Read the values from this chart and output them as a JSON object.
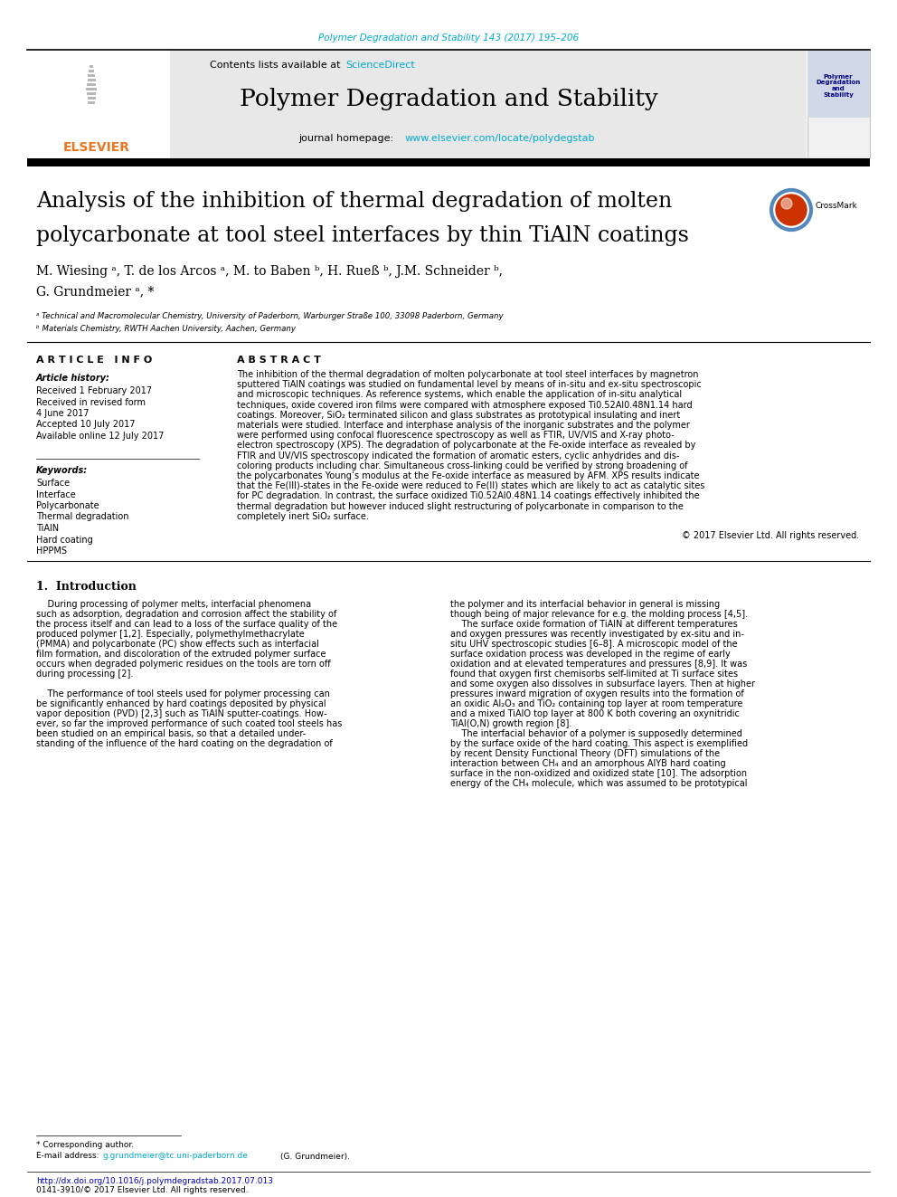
{
  "page_bg": "#ffffff",
  "top_journal_ref": "Polymer Degradation and Stability 143 (2017) 195–206",
  "top_journal_ref_color": "#00AACC",
  "header_bg": "#E8E8E8",
  "journal_title": "Polymer Degradation and Stability",
  "journal_homepage_url": "www.elsevier.com/locate/polydegstab",
  "article_title_line1": "Analysis of the inhibition of thermal degradation of molten",
  "article_title_line2": "polycarbonate at tool steel interfaces by thin TiAlN coatings",
  "authors": "M. Wiesing ᵃ, T. de los Arcos ᵃ, M. to Baben ᵇ, H. Rueß ᵇ, J.M. Schneider ᵇ,",
  "authors_line2": "G. Grundmeier ᵃ, *",
  "affil_a": "ᵃ Technical and Macromolecular Chemistry, University of Paderborn, Warburger Straße 100, 33098 Paderborn, Germany",
  "affil_b": "ᵇ Materials Chemistry, RWTH Aachen University, Aachen, Germany",
  "article_info_header": "A R T I C L E   I N F O",
  "article_history_header": "Article history:",
  "article_history": [
    "Received 1 February 2017",
    "Received in revised form",
    "4 June 2017",
    "Accepted 10 July 2017",
    "Available online 12 July 2017"
  ],
  "keywords_header": "Keywords:",
  "keywords": [
    "Surface",
    "Interface",
    "Polycarbonate",
    "Thermal degradation",
    "TiAlN",
    "Hard coating",
    "HPPMS"
  ],
  "abstract_header": "A B S T R A C T",
  "abstract_lines": [
    "The inhibition of the thermal degradation of molten polycarbonate at tool steel interfaces by magnetron",
    "sputtered TiAlN coatings was studied on fundamental level by means of in-situ and ex-situ spectroscopic",
    "and microscopic techniques. As reference systems, which enable the application of in-situ analytical",
    "techniques, oxide covered iron films were compared with atmosphere exposed Ti0.52Al0.48N1.14 hard",
    "coatings. Moreover, SiO₂ terminated silicon and glass substrates as prototypical insulating and inert",
    "materials were studied. Interface and interphase analysis of the inorganic substrates and the polymer",
    "were performed using confocal fluorescence spectroscopy as well as FTIR, UV/VIS and X-ray photo-",
    "electron spectroscopy (XPS). The degradation of polycarbonate at the Fe-oxide interface as revealed by",
    "FTIR and UV/VIS spectroscopy indicated the formation of aromatic esters, cyclic anhydrides and dis-",
    "coloring products including char. Simultaneous cross-linking could be verified by strong broadening of",
    "the polycarbonates Young’s modulus at the Fe-oxide interface as measured by AFM. XPS results indicate",
    "that the Fe(III)-states in the Fe-oxide were reduced to Fe(II) states which are likely to act as catalytic sites",
    "for PC degradation. In contrast, the surface oxidized Ti0.52Al0.48N1.14 coatings effectively inhibited the",
    "thermal degradation but however induced slight restructuring of polycarbonate in comparison to the",
    "completely inert SiO₂ surface."
  ],
  "copyright_text": "© 2017 Elsevier Ltd. All rights reserved.",
  "section1_header": "1.  Introduction",
  "intro_col1": [
    "    During processing of polymer melts, interfacial phenomena",
    "such as adsorption, degradation and corrosion affect the stability of",
    "the process itself and can lead to a loss of the surface quality of the",
    "produced polymer [1,2]. Especially, polymethylmethacrylate",
    "(PMMA) and polycarbonate (PC) show effects such as interfacial",
    "film formation, and discoloration of the extruded polymer surface",
    "occurs when degraded polymeric residues on the tools are torn off",
    "during processing [2].",
    "",
    "    The performance of tool steels used for polymer processing can",
    "be significantly enhanced by hard coatings deposited by physical",
    "vapor deposition (PVD) [2,3] such as TiAlN sputter-coatings. How-",
    "ever, so far the improved performance of such coated tool steels has",
    "been studied on an empirical basis, so that a detailed under-",
    "standing of the influence of the hard coating on the degradation of"
  ],
  "intro_col2": [
    "the polymer and its interfacial behavior in general is missing",
    "though being of major relevance for e.g. the molding process [4,5].",
    "    The surface oxide formation of TiAlN at different temperatures",
    "and oxygen pressures was recently investigated by ex-situ and in-",
    "situ UHV spectroscopic studies [6–8]. A microscopic model of the",
    "surface oxidation process was developed in the regime of early",
    "oxidation and at elevated temperatures and pressures [8,9]. It was",
    "found that oxygen first chemisorbs self-limited at Ti surface sites",
    "and some oxygen also dissolves in subsurface layers. Then at higher",
    "pressures inward migration of oxygen results into the formation of",
    "an oxidic Al₂O₃ and TiO₂ containing top layer at room temperature",
    "and a mixed TiAlO top layer at 800 K both covering an oxynitridic",
    "TiAl(O,N) growth region [8].",
    "    The interfacial behavior of a polymer is supposedly determined",
    "by the surface oxide of the hard coating. This aspect is exemplified",
    "by recent Density Functional Theory (DFT) simulations of the",
    "interaction between CH₄ and an amorphous AlYB hard coating",
    "surface in the non-oxidized and oxidized state [10]. The adsorption",
    "energy of the CH₄ molecule, which was assumed to be prototypical"
  ],
  "footnote_label": "* Corresponding author.",
  "footnote_email_label": "E-mail address:",
  "footnote_email": "g.grundmeier@tc.uni-paderborn.de",
  "footnote_name": "(G. Grundmeier).",
  "doi_text": "http://dx.doi.org/10.1016/j.polymdegradstab.2017.07.013",
  "doi_color": "#0000BB",
  "issn_text": "0141-3910/© 2017 Elsevier Ltd. All rights reserved.",
  "link_color": "#00AACC",
  "elsevier_color": "#E87722",
  "navy_color": "#000080"
}
